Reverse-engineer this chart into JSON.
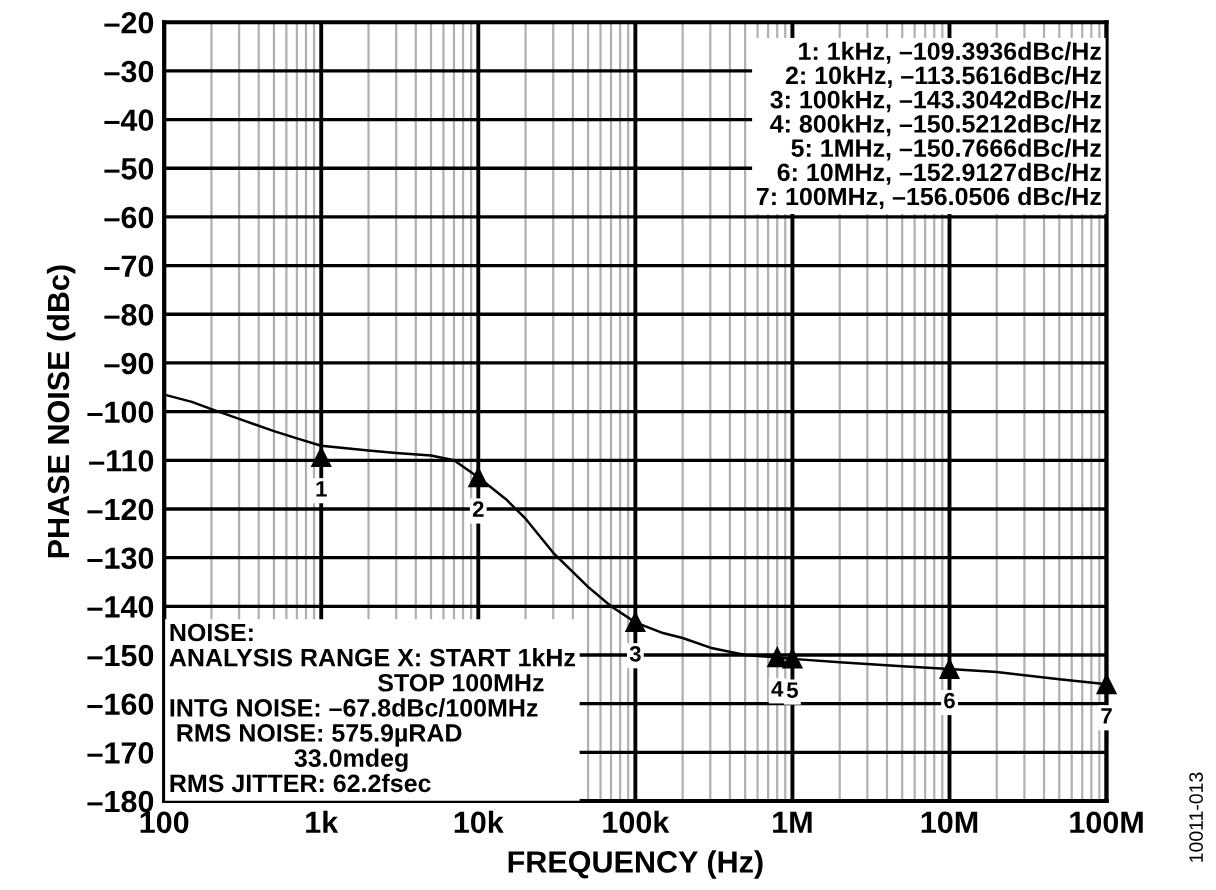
{
  "chart_data": {
    "type": "line",
    "xlabel": "FREQUENCY (Hz)",
    "ylabel": "PHASE NOISE (dBc)",
    "log": "x",
    "xlim": [
      100,
      100000000
    ],
    "ylim": [
      -180,
      -20
    ],
    "xticks": [
      100,
      {
        "value": 1000,
        "label": "1k"
      },
      {
        "value": 10000,
        "label": "10k"
      },
      {
        "value": 100000,
        "label": "100k"
      },
      {
        "value": 1000000,
        "label": "1M"
      },
      {
        "value": 10000000,
        "label": "10M"
      },
      {
        "value": 100000000,
        "label": "100M"
      }
    ],
    "yticks": [
      {
        "value": -180,
        "label": "–180"
      },
      {
        "value": -170,
        "label": "–170"
      },
      {
        "value": -160,
        "label": "–160"
      },
      {
        "value": -150,
        "label": "–150"
      },
      {
        "value": -140,
        "label": "–140"
      },
      {
        "value": -130,
        "label": "–130"
      },
      {
        "value": -120,
        "label": "–120"
      },
      {
        "value": -110,
        "label": "–110"
      },
      {
        "value": -100,
        "label": "–100"
      },
      {
        "value": -90,
        "label": "–90"
      },
      {
        "value": -80,
        "label": "–80"
      },
      {
        "value": -70,
        "label": "–70"
      },
      {
        "value": -60,
        "label": "–60"
      },
      {
        "value": -50,
        "label": "–50"
      },
      {
        "value": -40,
        "label": "–40"
      },
      {
        "value": -30,
        "label": "–30"
      },
      {
        "value": -20,
        "label": "–20"
      }
    ],
    "grid": true,
    "series": [
      {
        "color": "#000000",
        "x": [
          100,
          150,
          200,
          300,
          500,
          700,
          1000,
          2000,
          3000,
          5000,
          7000,
          10000,
          15000,
          20000,
          30000,
          50000,
          70000,
          100000,
          150000,
          200000,
          300000,
          500000,
          800000,
          1000000,
          2000000,
          5000000,
          10000000,
          20000000,
          50000000,
          100000000
        ],
        "values": [
          -96.5,
          -98,
          -99.5,
          -101.5,
          -104,
          -105.5,
          -107,
          -108,
          -108.5,
          -109,
          -110,
          -113.5,
          -118,
          -122,
          -129,
          -136,
          -140,
          -143.3,
          -145.5,
          -146.5,
          -148.5,
          -150,
          -150.5,
          -150.8,
          -151.5,
          -152.3,
          -152.9,
          -153.5,
          -155,
          -156
        ]
      }
    ],
    "annotations": [
      "1: 1kHz, –109.3936dBc/Hz\n2: 10kHz, –113.5616dBc/Hz\n3: 100kHz, –143.3042dBc/Hz\n4: 800kHz, –150.5212dBc/Hz\n5: 1MHz, –150.7666dBc/Hz\n6: 10MHz, –152.9127dBc/Hz\n7: 100MHz, –156.0506 dBc/Hz",
      "NOISE:\nANALYSIS RANGE X: START 1kHz\n                              STOP 100MHz\nINTG NOISE: –67.8dBc/100MHz\n RMS NOISE: 575.9µRAD\n                  33.0mdeg\nRMS JITTER: 62.2fsec",
      "10011-013",
      {
        "text": "1",
        "x": 1000,
        "y": -109.3936
      },
      {
        "text": "2",
        "x": 10000,
        "y": -113.5616
      },
      {
        "text": "3",
        "x": 100000,
        "y": -143.3042
      },
      {
        "text": "4",
        "x": 800000,
        "y": -150.5212
      },
      {
        "text": "5",
        "x": 1000000,
        "y": -150.7666
      },
      {
        "text": "6",
        "x": 10000000,
        "y": -152.9127
      },
      {
        "text": "7",
        "x": 100000000,
        "y": -156.0506
      }
    ]
  }
}
